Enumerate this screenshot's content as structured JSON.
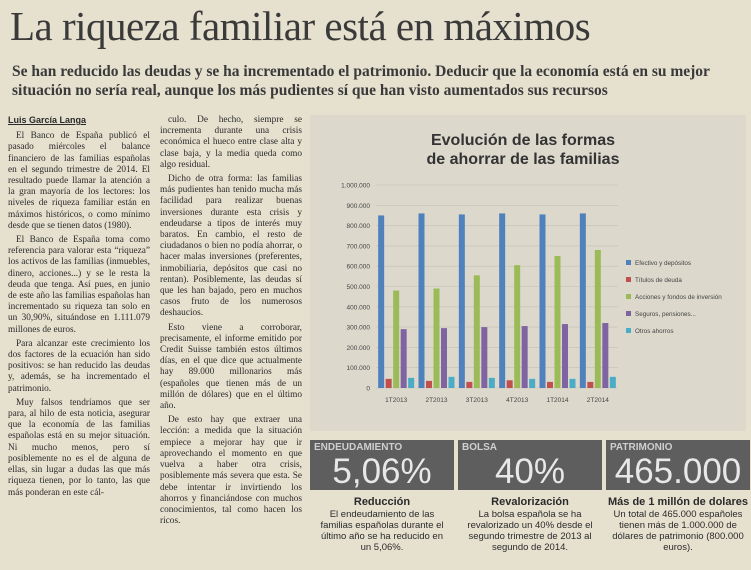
{
  "headline": "La riqueza familiar está en máximos",
  "subtitle": "Se han reducido las deudas y se ha incrementado el patrimonio. Deducir que la economía está en su mejor situación no sería real, aunque los más pudientes sí que han visto aumentados sus recursos",
  "author": "Luis García Langa",
  "columns": [
    [
      "El Banco de España publicó el pasado miércoles el balance financiero de las familias españolas en el segundo trimestre de 2014. El resultado puede llamar la atención a la gran mayoría de los lectores: los niveles de riqueza familiar están en máximos históricos, o como mínimo desde que se tienen datos (1980).",
      "El Banco de España toma como referencia para valorar esta “riqueza” los activos de las familias (inmuebles, dinero, acciones...) y se le resta la deuda que tenga. Así pues, en junio de este año las familias españolas han incrementado su riqueza tan solo en un 30,90%, situándose en 1.111.079 millones de euros.",
      "Para alcanzar este crecimiento los dos factores de la ecuación han sido positivos: se han reducido las deudas y, además, se ha incrementado el patrimonio.",
      "Muy falsos tendríamos que ser para, al hilo de esta noticia, asegurar que la economía de las familias españolas está en su mejor situación. Ni mucho menos, pero sí posiblemente no es el de alguna de ellas, sin lugar a dudas las que más riqueza tienen, por lo tanto, las que más ponderan en este cál-"
    ],
    [
      "culo. De hecho, siempre se incrementa durante una crisis económica el hueco entre clase alta y clase baja, y la media queda como algo residual.",
      "Dicho de otra forma: las familias más pudientes han tenido mucha más facilidad para realizar buenas inversiones durante esta crisis y endeudarse a tipos de interés muy baratos. En cambio, el resto de ciudadanos o bien no podía ahorrar, o hacer malas inversiones (preferentes, inmobiliaria, depósitos que casi no rentan). Posiblemente, las deudas sí que les han bajado, pero en muchos casos fruto de los numerosos deshaucios.",
      "Esto viene a corroborar, precisamente, el informe emitido por Credit Suisse también estos últimos días, en el que dice que actualmente hay 89.000 millonarios más (españoles que tienen más de un millón de dólares) que en el último año.",
      "De esto hay que extraer una lección: a medida que la situación empiece a mejorar hay que ir aprovechando el momento en que vuelva a haber otra crisis, posiblemente más severa que esta. Se debe intentar ir invirtiendo los ahorros y financiándose con muchos conocimientos, tal como hacen los ricos."
    ]
  ],
  "chart_data": {
    "type": "bar",
    "title": "Evolución de las formas de ahorrar de las familias",
    "categories": [
      "1T2013",
      "2T2013",
      "3T2013",
      "4T2013",
      "1T2014",
      "2T2014"
    ],
    "series": [
      {
        "name": "Efectivo y depósitos",
        "color": "#4f81bd",
        "values": [
          850000,
          860000,
          855000,
          860000,
          855000,
          860000
        ]
      },
      {
        "name": "Títulos de deuda",
        "color": "#c0504d",
        "values": [
          45000,
          35000,
          30000,
          38000,
          30000,
          30000
        ]
      },
      {
        "name": "Acciones y fondos de inversión",
        "color": "#9bbb59",
        "values": [
          480000,
          490000,
          555000,
          605000,
          650000,
          680000
        ]
      },
      {
        "name": "Seguros, pensiones...",
        "color": "#8064a2",
        "values": [
          290000,
          295000,
          300000,
          305000,
          315000,
          320000
        ]
      },
      {
        "name": "Otros ahorros",
        "color": "#4bacc6",
        "values": [
          50000,
          55000,
          50000,
          45000,
          45000,
          55000
        ]
      }
    ],
    "ylim": [
      0,
      1000000
    ],
    "yticks": [
      0,
      {
        "value": 100000,
        "label": "100.000"
      },
      {
        "value": 200000,
        "label": "200.000"
      },
      {
        "value": 300000,
        "label": "300.000"
      },
      {
        "value": 400000,
        "label": "400.000"
      },
      {
        "value": 500000,
        "label": "500.000"
      },
      {
        "value": 600000,
        "label": "600.000"
      },
      {
        "value": 700000,
        "label": "700.000"
      },
      {
        "value": 800000,
        "label": "800.000"
      },
      {
        "value": 900000,
        "label": "900.000"
      },
      {
        "value": 1000000,
        "label": "1.000.000"
      }
    ],
    "grid": true,
    "legend": "right"
  },
  "stats": [
    {
      "label": "ENDEUDAMIENTO",
      "figure": "5,06%",
      "heading": "Reducción",
      "text": "El endeudamiento de las familias españolas durante el último año se ha reducido en un 5,06%."
    },
    {
      "label": "BOLSA",
      "figure": "40%",
      "heading": "Revalorización",
      "text": "La bolsa española se ha revalorizado un 40% desde el segundo trimestre de 2013 al segundo de 2014."
    },
    {
      "label": "PATRIMONIO",
      "figure": "465.000",
      "heading": "Más de 1 millón de dolares",
      "text": "Un total de 465.000 españoles tienen más de 1.000.000 de dólares de patrimonio (800.000 euros)."
    }
  ]
}
